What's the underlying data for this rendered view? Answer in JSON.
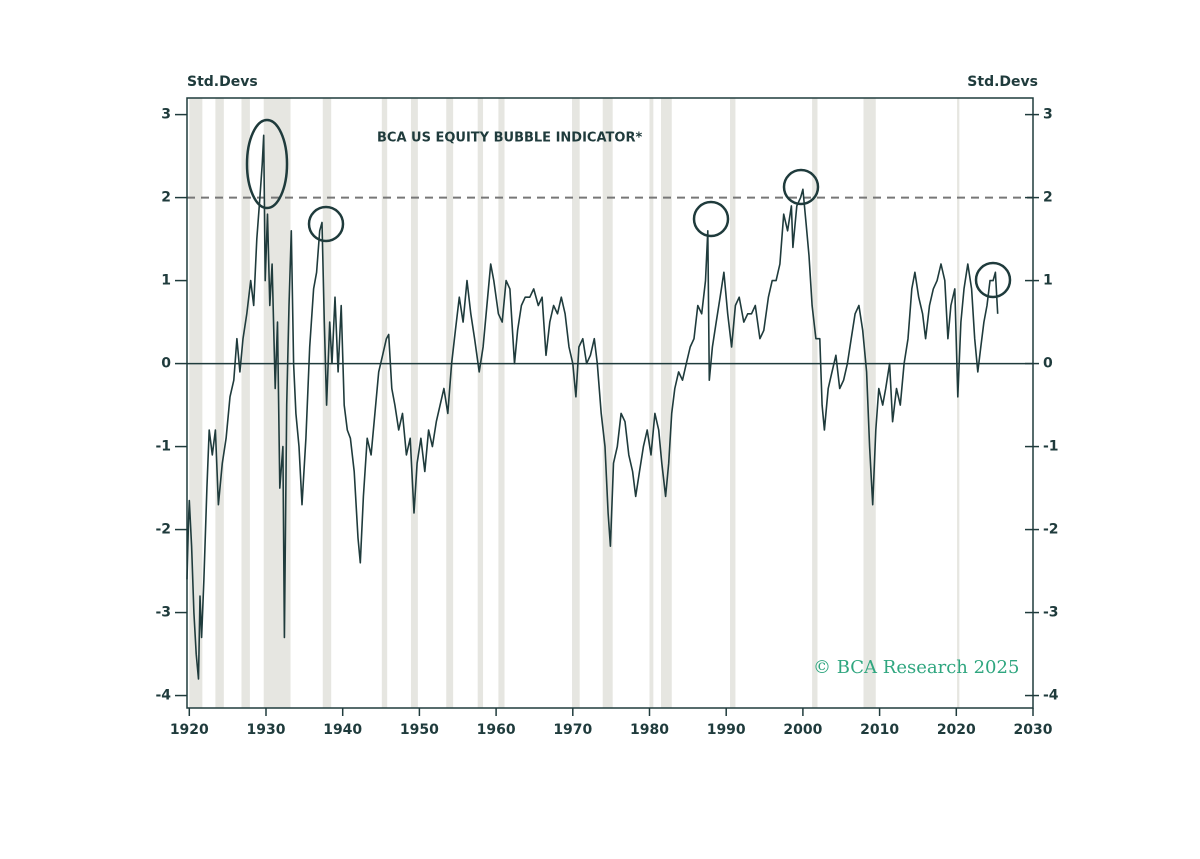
{
  "chart_data": {
    "type": "line",
    "title": "BCA US EQUITY BUBBLE INDICATOR*",
    "y_label": "Std.Devs",
    "y2_label": "Std.Devs",
    "watermark": "© BCA Research 2025",
    "xlim": [
      1919.7,
      2030
    ],
    "xticks": [
      1920,
      1930,
      1940,
      1950,
      1960,
      1970,
      1980,
      1990,
      2000,
      2010,
      2020,
      2030
    ],
    "ylim": [
      -4.15,
      3.2
    ],
    "yticks": [
      -4,
      -3,
      -2,
      -1,
      0,
      1,
      2,
      3
    ],
    "y2lim": [
      -4.15,
      3.2
    ],
    "y2ticks": [
      -4,
      -3,
      -2,
      -1,
      0,
      1,
      2,
      3
    ],
    "reference_lines": [
      {
        "value": 2,
        "style": "dashed",
        "color": "#777777"
      },
      {
        "value": 0,
        "style": "solid",
        "color": "#1f3b3c"
      }
    ],
    "shading_color": "#e6e6e1",
    "shading": [
      [
        1920.0,
        1921.7
      ],
      [
        1923.4,
        1924.5
      ],
      [
        1926.8,
        1927.9
      ],
      [
        1929.7,
        1933.2
      ],
      [
        1937.4,
        1938.5
      ],
      [
        1945.1,
        1945.8
      ],
      [
        1948.9,
        1949.8
      ],
      [
        1953.5,
        1954.4
      ],
      [
        1957.6,
        1958.3
      ],
      [
        1960.3,
        1961.1
      ],
      [
        1969.9,
        1970.9
      ],
      [
        1973.9,
        1975.2
      ],
      [
        1980.0,
        1980.5
      ],
      [
        1981.5,
        1982.9
      ],
      [
        1990.5,
        1991.2
      ],
      [
        2001.2,
        2001.9
      ],
      [
        2007.9,
        2009.5
      ],
      [
        2020.1,
        2020.4
      ]
    ],
    "x": [
      1919.7,
      1919.9,
      1920.0,
      1920.3,
      1920.6,
      1920.9,
      1921.2,
      1921.4,
      1921.6,
      1921.9,
      1922.3,
      1922.6,
      1923.0,
      1923.4,
      1923.8,
      1924.3,
      1924.8,
      1925.3,
      1925.8,
      1926.2,
      1926.6,
      1927.0,
      1927.5,
      1928.0,
      1928.4,
      1928.8,
      1929.2,
      1929.5,
      1929.7,
      1929.9,
      1930.2,
      1930.5,
      1930.8,
      1931.2,
      1931.5,
      1931.8,
      1932.2,
      1932.4,
      1932.7,
      1933.0,
      1933.3,
      1933.6,
      1933.9,
      1934.3,
      1934.7,
      1935.2,
      1935.7,
      1936.2,
      1936.6,
      1937.0,
      1937.3,
      1937.6,
      1937.9,
      1938.3,
      1938.6,
      1939.0,
      1939.4,
      1939.8,
      1940.2,
      1940.6,
      1941.0,
      1941.5,
      1942.0,
      1942.3,
      1942.7,
      1943.2,
      1943.7,
      1944.2,
      1944.7,
      1945.2,
      1945.7,
      1946.0,
      1946.4,
      1946.8,
      1947.3,
      1947.8,
      1948.3,
      1948.8,
      1949.3,
      1949.7,
      1950.2,
      1950.7,
      1951.2,
      1951.7,
      1952.2,
      1952.7,
      1953.2,
      1953.7,
      1954.2,
      1954.7,
      1955.2,
      1955.7,
      1956.2,
      1956.7,
      1957.2,
      1957.8,
      1958.3,
      1958.8,
      1959.3,
      1959.7,
      1960.3,
      1960.8,
      1961.3,
      1961.8,
      1962.4,
      1962.8,
      1963.3,
      1963.8,
      1964.4,
      1964.9,
      1965.5,
      1966.0,
      1966.5,
      1967.0,
      1967.5,
      1968.0,
      1968.5,
      1969.0,
      1969.5,
      1970.0,
      1970.4,
      1970.8,
      1971.3,
      1971.8,
      1972.3,
      1972.8,
      1973.2,
      1973.7,
      1974.2,
      1974.6,
      1974.9,
      1975.3,
      1975.8,
      1976.3,
      1976.8,
      1977.3,
      1977.8,
      1978.2,
      1978.7,
      1979.2,
      1979.7,
      1980.2,
      1980.7,
      1981.2,
      1981.6,
      1982.1,
      1982.5,
      1982.9,
      1983.3,
      1983.8,
      1984.3,
      1984.8,
      1985.3,
      1985.8,
      1986.3,
      1986.8,
      1987.3,
      1987.6,
      1987.8,
      1988.2,
      1988.7,
      1989.2,
      1989.7,
      1990.2,
      1990.7,
      1991.2,
      1991.7,
      1992.3,
      1992.8,
      1993.3,
      1993.8,
      1994.4,
      1994.9,
      1995.5,
      1996.0,
      1996.5,
      1997.0,
      1997.5,
      1998.0,
      1998.5,
      1998.7,
      1999.2,
      1999.7,
      2000.0,
      2000.4,
      2000.8,
      2001.2,
      2001.7,
      2002.2,
      2002.5,
      2002.8,
      2003.3,
      2003.8,
      2004.3,
      2004.8,
      2005.3,
      2005.8,
      2006.3,
      2006.8,
      2007.3,
      2007.8,
      2008.3,
      2008.7,
      2009.1,
      2009.5,
      2009.9,
      2010.4,
      2010.8,
      2011.3,
      2011.7,
      2012.2,
      2012.7,
      2013.2,
      2013.7,
      2014.2,
      2014.6,
      2015.1,
      2015.6,
      2016.0,
      2016.5,
      2017.0,
      2017.5,
      2018.0,
      2018.5,
      2018.9,
      2019.3,
      2019.8,
      2020.2,
      2020.6,
      2021.0,
      2021.5,
      2022.0,
      2022.4,
      2022.8,
      2023.2,
      2023.6,
      2024.0,
      2024.4,
      2024.8,
      2025.1,
      2025.4
    ],
    "series": [
      {
        "color": "#1f3b3c",
        "values": [
          -2.6,
          -1.9,
          -1.65,
          -2.2,
          -3.0,
          -3.5,
          -3.8,
          -2.8,
          -3.3,
          -2.6,
          -1.5,
          -0.8,
          -1.1,
          -0.8,
          -1.7,
          -1.2,
          -0.9,
          -0.4,
          -0.2,
          0.3,
          -0.1,
          0.3,
          0.6,
          1.0,
          0.7,
          1.5,
          2.0,
          2.4,
          2.75,
          1.0,
          1.8,
          0.7,
          1.2,
          -0.3,
          0.5,
          -1.5,
          -1.0,
          -3.3,
          -0.5,
          0.7,
          1.6,
          0.0,
          -0.6,
          -1.0,
          -1.7,
          -0.9,
          0.2,
          0.9,
          1.1,
          1.6,
          1.7,
          0.5,
          -0.5,
          0.5,
          0.0,
          0.8,
          -0.1,
          0.7,
          -0.5,
          -0.8,
          -0.9,
          -1.3,
          -2.1,
          -2.4,
          -1.6,
          -0.9,
          -1.1,
          -0.6,
          -0.1,
          0.1,
          0.3,
          0.35,
          -0.3,
          -0.5,
          -0.8,
          -0.6,
          -1.1,
          -0.9,
          -1.8,
          -1.2,
          -0.9,
          -1.3,
          -0.8,
          -1.0,
          -0.7,
          -0.5,
          -0.3,
          -0.6,
          0.0,
          0.4,
          0.8,
          0.5,
          1.0,
          0.6,
          0.3,
          -0.1,
          0.2,
          0.7,
          1.2,
          1.0,
          0.6,
          0.5,
          1.0,
          0.9,
          0.0,
          0.4,
          0.7,
          0.8,
          0.8,
          0.9,
          0.7,
          0.8,
          0.1,
          0.5,
          0.7,
          0.6,
          0.8,
          0.6,
          0.2,
          0.0,
          -0.4,
          0.2,
          0.3,
          0.0,
          0.1,
          0.3,
          0.0,
          -0.6,
          -1.0,
          -1.8,
          -2.2,
          -1.2,
          -1.0,
          -0.6,
          -0.7,
          -1.1,
          -1.3,
          -1.6,
          -1.3,
          -1.0,
          -0.8,
          -1.1,
          -0.6,
          -0.8,
          -1.2,
          -1.6,
          -1.2,
          -0.6,
          -0.3,
          -0.1,
          -0.2,
          0.0,
          0.2,
          0.3,
          0.7,
          0.6,
          1.0,
          1.6,
          -0.2,
          0.2,
          0.5,
          0.8,
          1.1,
          0.6,
          0.2,
          0.7,
          0.8,
          0.5,
          0.6,
          0.6,
          0.7,
          0.3,
          0.4,
          0.8,
          1.0,
          1.0,
          1.2,
          1.8,
          1.6,
          1.9,
          1.4,
          1.9,
          2.0,
          2.1,
          1.7,
          1.3,
          0.7,
          0.3,
          0.3,
          -0.5,
          -0.8,
          -0.3,
          -0.1,
          0.1,
          -0.3,
          -0.2,
          0.0,
          0.3,
          0.6,
          0.7,
          0.4,
          -0.1,
          -1.0,
          -1.7,
          -0.8,
          -0.3,
          -0.5,
          -0.3,
          0.0,
          -0.7,
          -0.3,
          -0.5,
          0.0,
          0.3,
          0.9,
          1.1,
          0.8,
          0.6,
          0.3,
          0.7,
          0.9,
          1.0,
          1.2,
          1.0,
          0.3,
          0.7,
          0.9,
          -0.4,
          0.5,
          0.9,
          1.2,
          0.9,
          0.3,
          -0.1,
          0.2,
          0.5,
          0.7,
          1.0,
          1.0,
          1.1,
          0.6
        ]
      }
    ]
  }
}
